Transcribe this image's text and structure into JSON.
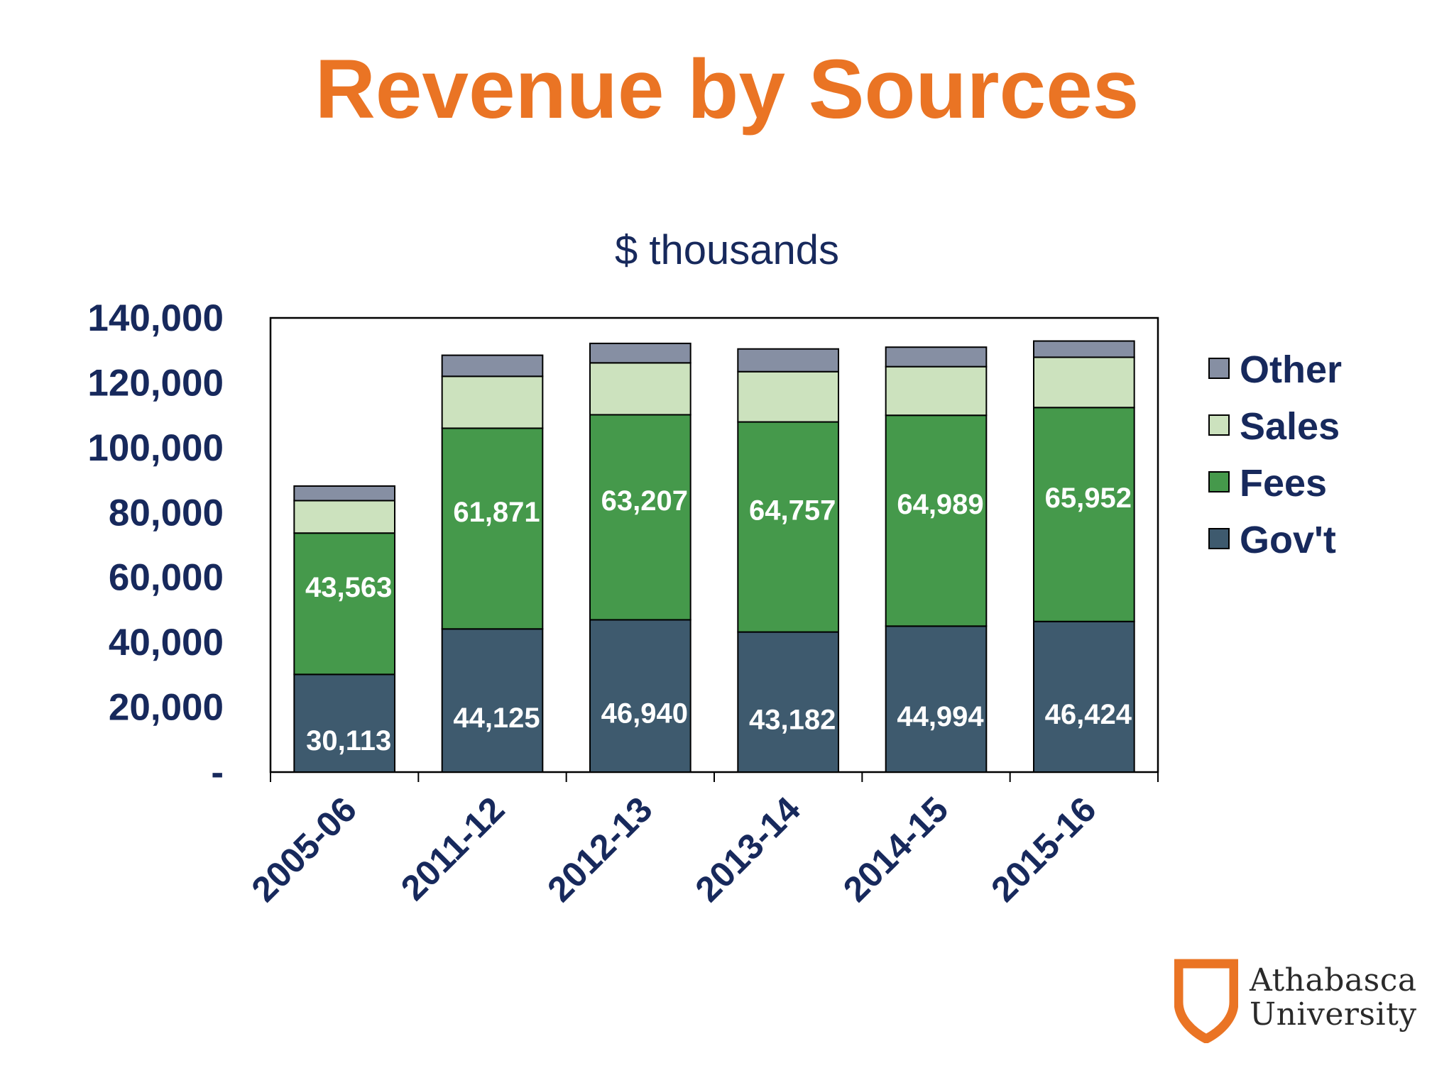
{
  "title": "Revenue by Sources",
  "logo": {
    "line1": "Athabasca",
    "line2": "University",
    "icon": "shield-icon"
  },
  "chart_data": {
    "type": "bar",
    "stacked": true,
    "subtitle": "$ thousands",
    "categories": [
      "2005-06",
      "2011-12",
      "2012-13",
      "2013-14",
      "2014-15",
      "2015-16"
    ],
    "series": [
      {
        "name": "Gov't",
        "values": [
          30113,
          44125,
          46940,
          43182,
          44994,
          46424
        ],
        "color": "#3e5a6e",
        "data_labels": [
          "30,113",
          "44,125",
          "46,940",
          "43,182",
          "44,994",
          "46,424"
        ]
      },
      {
        "name": "Fees",
        "values": [
          43563,
          61871,
          63207,
          64757,
          64989,
          65952
        ],
        "color": "#45994b",
        "data_labels": [
          "43,563",
          "61,871",
          "63,207",
          "64,757",
          "64,989",
          "65,952"
        ]
      },
      {
        "name": "Sales",
        "values": [
          10000,
          16000,
          16000,
          15500,
          15000,
          15500
        ],
        "color": "#cce2be",
        "data_labels": []
      },
      {
        "name": "Other",
        "values": [
          4500,
          6500,
          6000,
          7000,
          6000,
          5000
        ],
        "color": "#868fa3",
        "data_labels": []
      }
    ],
    "ylim": [
      0,
      140000
    ],
    "yticks": [
      0,
      20000,
      40000,
      60000,
      80000,
      100000,
      120000,
      140000
    ],
    "ytick_labels": [
      "-",
      "20,000",
      "40,000",
      "60,000",
      "80,000",
      "100,000",
      "120,000",
      "140,000"
    ],
    "legend_position": "right",
    "legend_order": [
      "Other",
      "Sales",
      "Fees",
      "Gov't"
    ],
    "grid": false
  }
}
